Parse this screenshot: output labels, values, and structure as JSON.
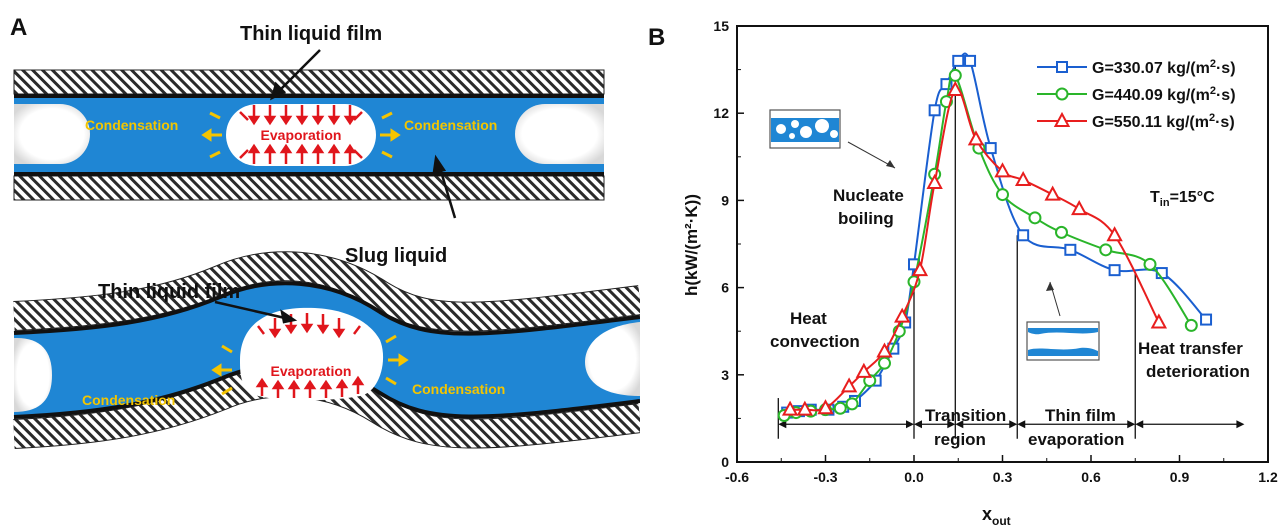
{
  "panels": {
    "a": "A",
    "b": "B"
  },
  "diagram": {
    "straight": {
      "film_label": "Thin liquid film",
      "left_label": "Condensation",
      "center_label": "Evaporation",
      "right_label": "Condensation",
      "slug_label": "Slug liquid"
    },
    "wavy": {
      "film_label": "Thin liquid film",
      "left_label": "Condensation",
      "center_label": "Evaporation",
      "right_label": "Condensation"
    },
    "colors": {
      "liquid": "#1f86d4",
      "wall_line": "#111111",
      "arrow_red": "#e0161c",
      "arrow_yellow": "#f5c400",
      "text_yellow": "#f3c500"
    }
  },
  "chart_data": {
    "type": "line",
    "ylabel": "h(kW/(m²·K))",
    "xlabel_main": "x",
    "xlabel_sub": "out",
    "xlim": [
      -0.6,
      1.2
    ],
    "ylim": [
      0,
      15
    ],
    "xticks": [
      "-0.6",
      "-0.3",
      "0.0",
      "0.3",
      "0.6",
      "0.9",
      "1.2"
    ],
    "yticks": [
      "0",
      "3",
      "6",
      "9",
      "12",
      "15"
    ],
    "xtick_values": [
      -0.6,
      -0.3,
      0.0,
      0.3,
      0.6,
      0.9,
      1.2
    ],
    "ytick_values": [
      0,
      3,
      6,
      9,
      12,
      15
    ],
    "series": [
      {
        "name_main": "G=330.07 kg/(m",
        "name_sup": "2",
        "name_end": "·s)",
        "color": "#1a5fd0",
        "marker": "square",
        "x": [
          -0.43,
          -0.39,
          -0.35,
          -0.29,
          -0.24,
          -0.2,
          -0.13,
          -0.07,
          -0.03,
          0.0,
          0.07,
          0.11,
          0.15,
          0.19,
          0.26,
          0.37,
          0.53,
          0.68,
          0.84,
          0.99
        ],
        "y": [
          1.7,
          1.75,
          1.8,
          1.8,
          1.9,
          2.1,
          2.8,
          3.9,
          4.8,
          6.8,
          12.1,
          13.0,
          13.8,
          13.8,
          10.8,
          7.8,
          7.3,
          6.6,
          6.5,
          4.9
        ]
      },
      {
        "name_main": "G=440.09 kg/(m",
        "name_sup": "2",
        "name_end": "·s)",
        "color": "#2ab52a",
        "marker": "circle",
        "x": [
          -0.44,
          -0.4,
          -0.35,
          -0.3,
          -0.25,
          -0.21,
          -0.15,
          -0.1,
          -0.05,
          0.0,
          0.07,
          0.11,
          0.14,
          0.22,
          0.3,
          0.41,
          0.5,
          0.65,
          0.8,
          0.94
        ],
        "y": [
          1.6,
          1.7,
          1.75,
          1.8,
          1.85,
          2.0,
          2.8,
          3.4,
          4.5,
          6.2,
          9.9,
          12.4,
          13.3,
          10.8,
          9.2,
          8.4,
          7.9,
          7.3,
          6.8,
          4.7
        ]
      },
      {
        "name_main": "G=550.11 kg/(m",
        "name_sup": "2",
        "name_end": "·s)",
        "color": "#e81e1e",
        "marker": "triangle",
        "x": [
          -0.42,
          -0.37,
          -0.3,
          -0.22,
          -0.17,
          -0.1,
          -0.04,
          0.02,
          0.07,
          0.14,
          0.21,
          0.3,
          0.37,
          0.47,
          0.56,
          0.68,
          0.83
        ],
        "y": [
          1.8,
          1.8,
          1.85,
          2.6,
          3.1,
          3.8,
          5.0,
          6.6,
          9.6,
          12.8,
          11.1,
          10.0,
          9.7,
          9.2,
          8.7,
          7.8,
          4.8
        ]
      }
    ],
    "annotations": {
      "tin_main": "T",
      "tin_sub": "in",
      "tin_end": "=15°C",
      "nucleate_1": "Nucleate",
      "nucleate_2": "boiling",
      "heat_conv_1": "Heat",
      "heat_conv_2": "convection",
      "deter_1": "Heat transfer",
      "deter_2": "deterioration",
      "trans_1": "Transition",
      "trans_2": "region",
      "thin_1": "Thin film",
      "thin_2": "evaporation"
    },
    "region_boundaries_x": [
      -0.46,
      0.0,
      0.14,
      0.35,
      0.75
    ],
    "grid": false,
    "legend_position": "top-right"
  }
}
